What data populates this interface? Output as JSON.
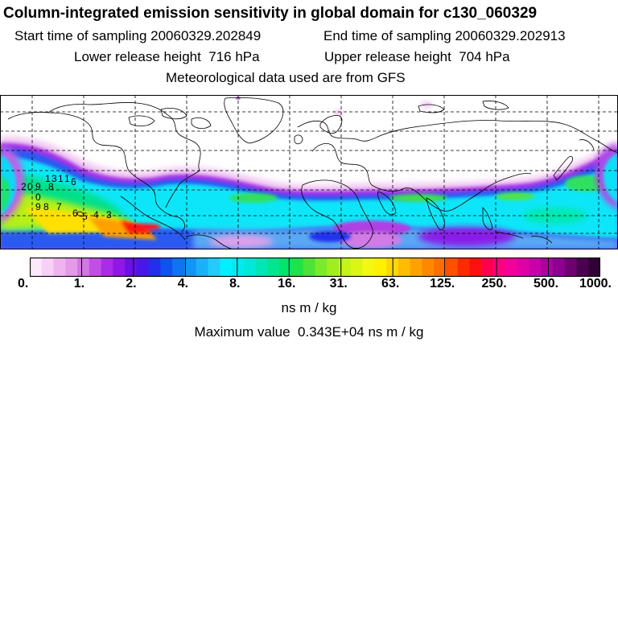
{
  "title": "Column-integrated emission sensitivity in global domain for c130_060329",
  "start_time": "Start time of sampling 20060329.202849",
  "end_time": "End time of sampling 20060329.202913",
  "lower_release": "Lower release height  716 hPa",
  "upper_release": "Upper release height  704 hPa",
  "met_data": "Meteorological data used are from GFS",
  "colorbar": {
    "tick_labels": [
      "0.",
      "1.",
      "2.",
      "4.",
      "8.",
      "16.",
      "31.",
      "63.",
      "125.",
      "250.",
      "500.",
      "1000."
    ],
    "colors": [
      "#fbe8fb",
      "#f6d0f6",
      "#efb4ef",
      "#e59ae8",
      "#d277e4",
      "#c050e4",
      "#a92ce8",
      "#9016e9",
      "#6a10e8",
      "#4818ea",
      "#2230ee",
      "#1052f0",
      "#0f74f4",
      "#1196f6",
      "#19b2f8",
      "#21ccfa",
      "#00f0ff",
      "#00eaf0",
      "#00e8d8",
      "#00e6b6",
      "#00e690",
      "#00e46a",
      "#1de24a",
      "#4de237",
      "#7bea2a",
      "#a0ef1d",
      "#c4f418",
      "#dcf614",
      "#f2f80e",
      "#fff000",
      "#ffd800",
      "#ffbd00",
      "#ffa200",
      "#ff8800",
      "#ff6e00",
      "#ff5000",
      "#ff2a00",
      "#ff1010",
      "#ff0050",
      "#ff0080",
      "#f4009a",
      "#e000a5",
      "#c800a8",
      "#ad00a0",
      "#8e0090",
      "#6e0070",
      "#4c0050",
      "#300036"
    ],
    "units": "ns m / kg"
  },
  "max_value": "Maximum value  0.343E+04 ns m / kg",
  "trajectory_labels": [
    "2",
    "0",
    "9",
    "8",
    "1",
    "3",
    "1",
    "1",
    "6",
    "0",
    "9",
    "8",
    "7",
    "6",
    "5",
    "4",
    "3"
  ]
}
